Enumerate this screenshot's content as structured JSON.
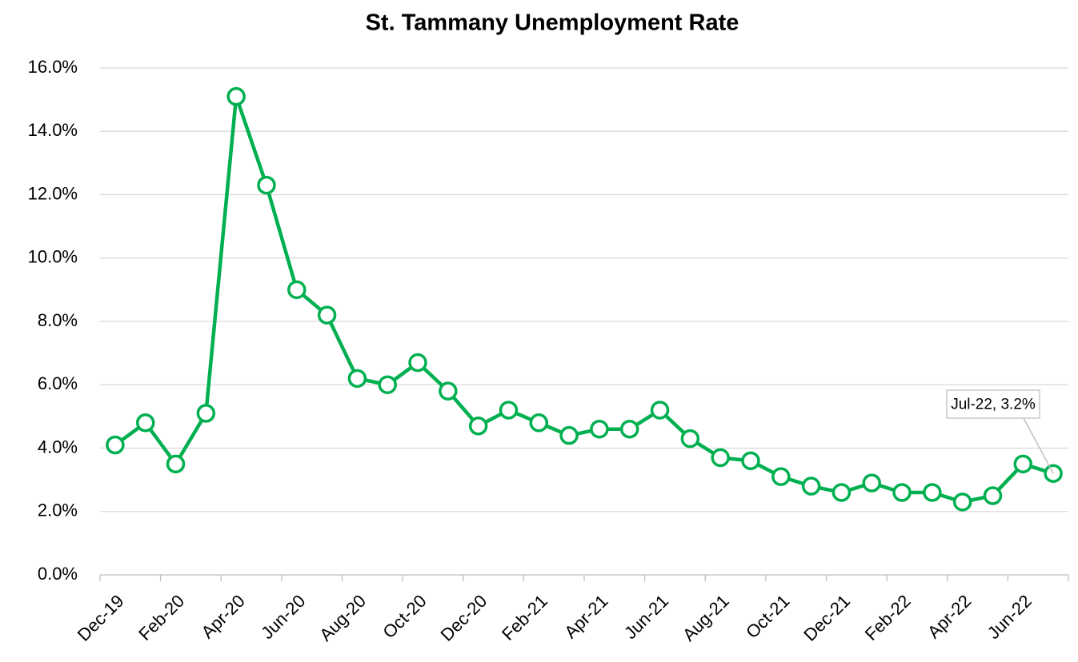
{
  "chart_data": {
    "type": "line",
    "title": "St. Tammany Unemployment Rate",
    "categories": [
      "Dec-19",
      null,
      "Feb-20",
      null,
      "Apr-20",
      null,
      "Jun-20",
      null,
      "Aug-20",
      null,
      "Oct-20",
      null,
      "Dec-20",
      null,
      "Feb-21",
      null,
      "Apr-21",
      null,
      "Jun-21",
      null,
      "Aug-21",
      null,
      "Oct-21",
      null,
      "Dec-21",
      null,
      "Feb-22",
      null,
      "Apr-22",
      null,
      "Jun-22",
      null
    ],
    "series": [
      {
        "name": "St. Tammany",
        "color": "#00b050",
        "values": [
          4.1,
          4.8,
          3.5,
          5.1,
          15.1,
          12.3,
          9.0,
          8.2,
          6.2,
          6.0,
          6.7,
          5.8,
          4.7,
          5.2,
          4.8,
          4.4,
          4.6,
          4.6,
          5.2,
          4.3,
          3.7,
          3.6,
          3.1,
          2.8,
          2.6,
          2.9,
          2.6,
          2.6,
          2.3,
          2.5,
          3.5,
          3.2
        ]
      }
    ],
    "ylim": [
      0,
      16
    ],
    "yticks": [
      {
        "value": 0,
        "label": "0.0%"
      },
      {
        "value": 2,
        "label": "2.0%"
      },
      {
        "value": 4,
        "label": "4.0%"
      },
      {
        "value": 6,
        "label": "6.0%"
      },
      {
        "value": 8,
        "label": "8.0%"
      },
      {
        "value": 10,
        "label": "10.0%"
      },
      {
        "value": 12,
        "label": "12.0%"
      },
      {
        "value": 14,
        "label": "14.0%"
      },
      {
        "value": 16,
        "label": "16.0%"
      }
    ],
    "grid": true,
    "annotations": [
      {
        "text": "Jul-22, 3.2%"
      }
    ]
  }
}
